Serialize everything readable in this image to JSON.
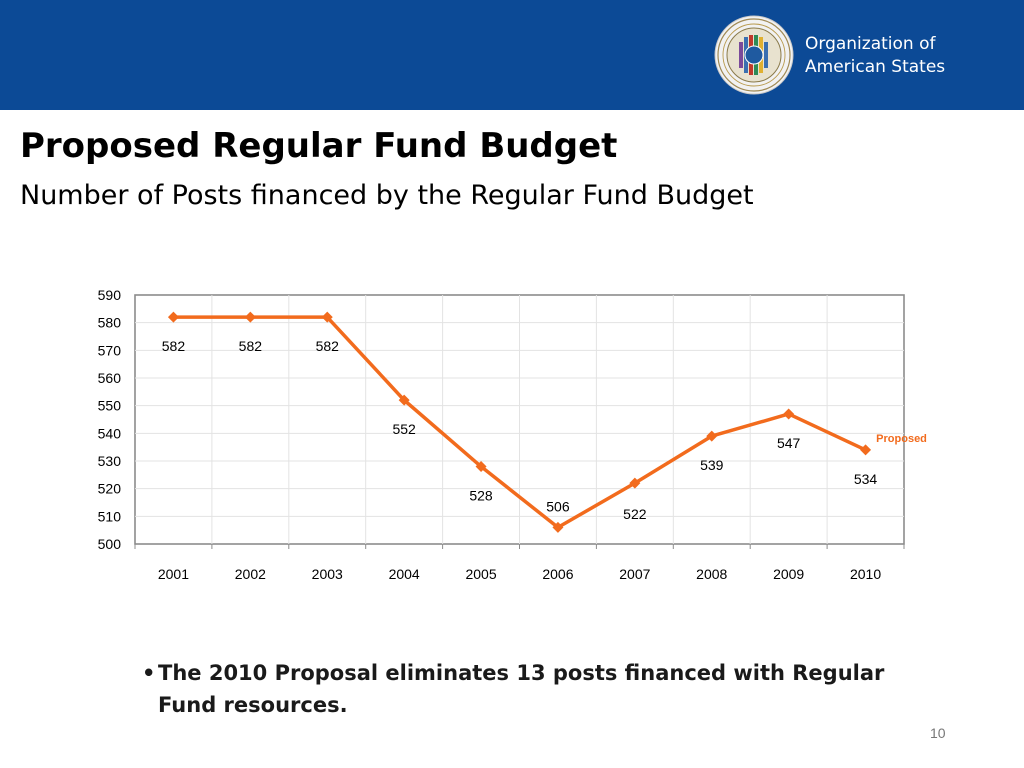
{
  "header": {
    "org_name_line1": "Organization of",
    "org_name_line2": "American States",
    "seal_icon": "oas-seal-icon",
    "band_color": "#0c4a96"
  },
  "slide": {
    "title": "Proposed Regular Fund Budget",
    "subtitle": "Number of Posts financed by the Regular Fund Budget",
    "bullet_marker": "•",
    "bullet_text": "The 2010 Proposal eliminates 13 posts financed with Regular Fund resources.",
    "page_number": "10"
  },
  "chart_data": {
    "type": "line",
    "title": "",
    "xlabel": "",
    "ylabel": "",
    "categories": [
      "2001",
      "2002",
      "2003",
      "2004",
      "2005",
      "2006",
      "2007",
      "2008",
      "2009",
      "2010"
    ],
    "series": [
      {
        "values": [
          582,
          582,
          582,
          552,
          528,
          506,
          522,
          539,
          547,
          534
        ],
        "color": "#f26b1d"
      }
    ],
    "data_labels": [
      "582",
      "582",
      "582",
      "552",
      "528",
      "506",
      "522",
      "539",
      "547",
      "534"
    ],
    "ylim": [
      500,
      590
    ],
    "yticks": [
      500,
      510,
      520,
      530,
      540,
      550,
      560,
      570,
      580,
      590
    ],
    "grid": true,
    "marker": "diamond",
    "annotation": {
      "text": "Proposed",
      "category": "2010",
      "color": "#f26b1d"
    }
  }
}
